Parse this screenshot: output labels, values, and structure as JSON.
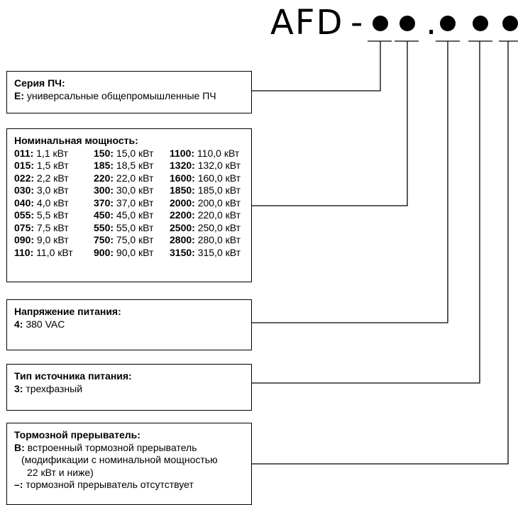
{
  "code": {
    "prefix": "AFD",
    "dash": "-",
    "separator": "."
  },
  "series": {
    "title": "Серия ПЧ:",
    "items": [
      {
        "code": "E:",
        "text": " универсальные общепромышленные ПЧ"
      }
    ]
  },
  "power": {
    "title": "Номинальная мощность:",
    "entries": [
      [
        "011:",
        " 1,1 кВт"
      ],
      [
        "150:",
        " 15,0 кВт"
      ],
      [
        "1100:",
        " 110,0 кВт"
      ],
      [
        "015:",
        " 1,5 кВт"
      ],
      [
        "185:",
        " 18,5 кВт"
      ],
      [
        "1320:",
        " 132,0 кВт"
      ],
      [
        "022:",
        " 2,2 кВт"
      ],
      [
        "220:",
        " 22,0 кВт"
      ],
      [
        "1600:",
        " 160,0 кВт"
      ],
      [
        "030:",
        " 3,0 кВт"
      ],
      [
        "300:",
        " 30,0 кВт"
      ],
      [
        "1850:",
        " 185,0 кВт"
      ],
      [
        "040:",
        " 4,0 кВт"
      ],
      [
        "370:",
        " 37,0 кВт"
      ],
      [
        "2000:",
        " 200,0 кВт"
      ],
      [
        "055:",
        " 5,5 кВт"
      ],
      [
        "450:",
        " 45,0 кВт"
      ],
      [
        "2200:",
        " 220,0 кВт"
      ],
      [
        "075:",
        " 7,5 кВт"
      ],
      [
        "550:",
        " 55,0 кВт"
      ],
      [
        "2500:",
        " 250,0 кВт"
      ],
      [
        "090:",
        " 9,0 кВт"
      ],
      [
        "750:",
        " 75,0 кВт"
      ],
      [
        "2800:",
        " 280,0 кВт"
      ],
      [
        "110:",
        " 11,0 кВт"
      ],
      [
        "900:",
        " 90,0 кВт"
      ],
      [
        "3150:",
        " 315,0 кВт"
      ]
    ]
  },
  "voltage": {
    "title": "Напряжение питания:",
    "code": "4:",
    "text": " 380 VAC"
  },
  "supply": {
    "title": "Тип источника питания:",
    "code": "3:",
    "text": " трехфазный"
  },
  "brake": {
    "title": "Тормозной прерыватель:",
    "b_code": "B:",
    "b_text": " встроенный тормозной прерыватель",
    "b_note1": "(модификации с номинальной мощностью",
    "b_note2": "22 кВт и ниже)",
    "none_code": "–:",
    "none_text": " тормозной прерыватель отсутствует"
  }
}
